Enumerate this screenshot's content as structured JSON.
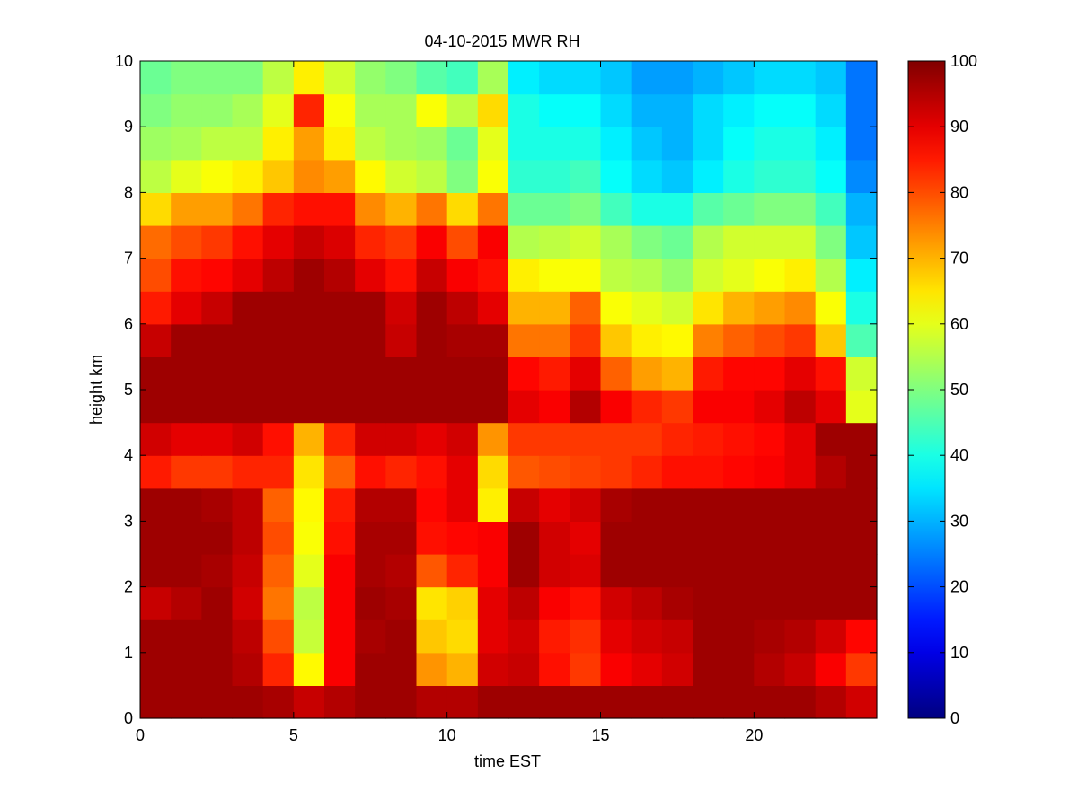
{
  "chart_data": {
    "type": "heatmap",
    "title": "04-10-2015 MWR RH",
    "xlabel": "time EST",
    "ylabel": "height km",
    "xlim": [
      0,
      24
    ],
    "ylim": [
      0,
      10
    ],
    "xticks": [
      "0",
      "5",
      "10",
      "15",
      "20"
    ],
    "yticks": [
      "0",
      "1",
      "2",
      "3",
      "4",
      "5",
      "6",
      "7",
      "8",
      "9",
      "10"
    ],
    "colormap": "jet",
    "colorbar": {
      "min": 0,
      "max": 100,
      "ticks": [
        "0",
        "10",
        "20",
        "30",
        "40",
        "50",
        "60",
        "70",
        "80",
        "90",
        "100"
      ]
    },
    "x_hours": [
      0,
      1,
      2,
      3,
      4,
      5,
      6,
      7,
      8,
      9,
      10,
      11,
      12,
      13,
      14,
      15,
      16,
      17,
      18,
      19,
      20,
      21,
      22,
      23
    ],
    "y_levels_km": [
      0,
      0.5,
      1,
      1.5,
      2,
      2.5,
      3,
      3.5,
      4,
      4.5,
      5,
      5.5,
      6,
      6.5,
      7,
      7.5,
      8,
      8.5,
      9,
      9.5
    ],
    "z_rh": [
      [
        97,
        97,
        97,
        97,
        96,
        93,
        95,
        97,
        97,
        95,
        95,
        97,
        97,
        97,
        97,
        97,
        97,
        97,
        97,
        97,
        97,
        97,
        95,
        92
      ],
      [
        97,
        97,
        97,
        95,
        84,
        63,
        88,
        97,
        97,
        73,
        70,
        92,
        93,
        86,
        82,
        88,
        90,
        92,
        97,
        97,
        95,
        93,
        88,
        82
      ],
      [
        97,
        97,
        97,
        94,
        80,
        57,
        88,
        96,
        97,
        68,
        66,
        90,
        92,
        85,
        83,
        90,
        92,
        93,
        97,
        97,
        96,
        95,
        92,
        87
      ],
      [
        93,
        95,
        97,
        92,
        76,
        56,
        88,
        97,
        96,
        65,
        67,
        90,
        94,
        88,
        86,
        92,
        94,
        96,
        97,
        97,
        97,
        97,
        97,
        97
      ],
      [
        97,
        97,
        96,
        93,
        78,
        60,
        88,
        96,
        95,
        79,
        84,
        88,
        97,
        92,
        91,
        97,
        97,
        97,
        97,
        97,
        97,
        97,
        97,
        97
      ],
      [
        97,
        97,
        97,
        94,
        80,
        62,
        86,
        96,
        96,
        86,
        87,
        88,
        97,
        92,
        90,
        97,
        97,
        97,
        97,
        97,
        97,
        97,
        97,
        97
      ],
      [
        97,
        97,
        96,
        94,
        78,
        63,
        85,
        95,
        95,
        87,
        90,
        64,
        93,
        90,
        92,
        96,
        97,
        97,
        97,
        97,
        97,
        97,
        97,
        97
      ],
      [
        85,
        82,
        82,
        84,
        84,
        65,
        78,
        86,
        84,
        86,
        90,
        66,
        79,
        80,
        81,
        82,
        84,
        86,
        86,
        87,
        88,
        90,
        95,
        97
      ],
      [
        92,
        90,
        90,
        92,
        86,
        70,
        84,
        92,
        92,
        90,
        92,
        73,
        82,
        82,
        82,
        82,
        82,
        84,
        85,
        86,
        87,
        90,
        97,
        97
      ],
      [
        97,
        97,
        97,
        97,
        97,
        97,
        97,
        97,
        97,
        97,
        97,
        97,
        90,
        88,
        95,
        88,
        84,
        82,
        88,
        88,
        90,
        94,
        90,
        60
      ],
      [
        97,
        97,
        97,
        97,
        97,
        97,
        97,
        97,
        97,
        97,
        97,
        97,
        87,
        85,
        90,
        78,
        72,
        70,
        85,
        87,
        87,
        90,
        86,
        58
      ],
      [
        93,
        97,
        97,
        97,
        97,
        97,
        97,
        97,
        93,
        97,
        96,
        96,
        76,
        76,
        82,
        68,
        64,
        63,
        75,
        78,
        80,
        82,
        68,
        45
      ],
      [
        85,
        90,
        93,
        97,
        97,
        97,
        97,
        97,
        92,
        97,
        94,
        90,
        70,
        70,
        78,
        62,
        60,
        58,
        65,
        70,
        72,
        74,
        62,
        40
      ],
      [
        80,
        86,
        87,
        90,
        94,
        97,
        95,
        90,
        86,
        93,
        88,
        86,
        64,
        62,
        62,
        56,
        55,
        52,
        58,
        60,
        62,
        64,
        55,
        36
      ],
      [
        77,
        80,
        82,
        86,
        90,
        93,
        91,
        84,
        82,
        88,
        80,
        88,
        55,
        56,
        58,
        54,
        50,
        48,
        55,
        58,
        58,
        58,
        50,
        32
      ],
      [
        66,
        72,
        72,
        76,
        84,
        86,
        86,
        74,
        70,
        76,
        66,
        76,
        48,
        48,
        50,
        44,
        40,
        40,
        46,
        48,
        50,
        50,
        44,
        30
      ],
      [
        56,
        60,
        62,
        64,
        68,
        74,
        72,
        63,
        58,
        56,
        50,
        62,
        42,
        42,
        44,
        38,
        34,
        32,
        36,
        40,
        42,
        42,
        38,
        26
      ],
      [
        53,
        54,
        56,
        56,
        64,
        72,
        64,
        56,
        54,
        53,
        48,
        60,
        40,
        40,
        40,
        36,
        32,
        30,
        34,
        38,
        40,
        40,
        36,
        24
      ],
      [
        50,
        52,
        52,
        54,
        60,
        84,
        62,
        54,
        54,
        62,
        56,
        66,
        40,
        38,
        38,
        34,
        30,
        30,
        34,
        36,
        38,
        38,
        34,
        24
      ],
      [
        48,
        50,
        50,
        50,
        56,
        64,
        58,
        52,
        50,
        46,
        44,
        54,
        36,
        34,
        34,
        32,
        28,
        28,
        30,
        32,
        34,
        34,
        32,
        24
      ]
    ]
  }
}
